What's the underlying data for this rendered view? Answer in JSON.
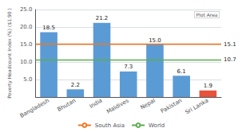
{
  "chart_data": {
    "type": "bar",
    "categories": [
      "Bangladesh",
      "Bhutan",
      "India",
      "Maldives",
      "Nepal",
      "Pakistan",
      "Sri Lanka"
    ],
    "values": [
      18.5,
      2.2,
      21.2,
      7.3,
      15.0,
      6.1,
      1.9
    ],
    "value_labels": [
      "18.5",
      "2.2",
      "21.2",
      "7.3",
      "15.0",
      "6.1",
      "1.9"
    ],
    "colors": [
      "#5B9BD5",
      "#5B9BD5",
      "#5B9BD5",
      "#5B9BD5",
      "#5B9BD5",
      "#5B9BD5",
      "#E8523A"
    ],
    "data_labels": true,
    "reference_lines": [
      {
        "name": "South Asia",
        "value": 15.1,
        "color": "#F07820"
      },
      {
        "name": "World",
        "value": 10.7,
        "color": "#5BAD4E"
      }
    ],
    "annotation": "Plot Area",
    "ylabel": "Poverty Headcount Index (%) ($1.90 )",
    "ylim": [
      0,
      25.0
    ],
    "yticks": [
      {
        "value": 5.0,
        "label": "5.0"
      },
      {
        "value": 10.0,
        "label": "10.0"
      },
      {
        "value": 15.0,
        "label": "15.0"
      },
      {
        "value": 20.0,
        "label": "20.0"
      },
      {
        "value": 25.0,
        "label": "25.0"
      }
    ],
    "grid": true,
    "legend": "bottom"
  }
}
